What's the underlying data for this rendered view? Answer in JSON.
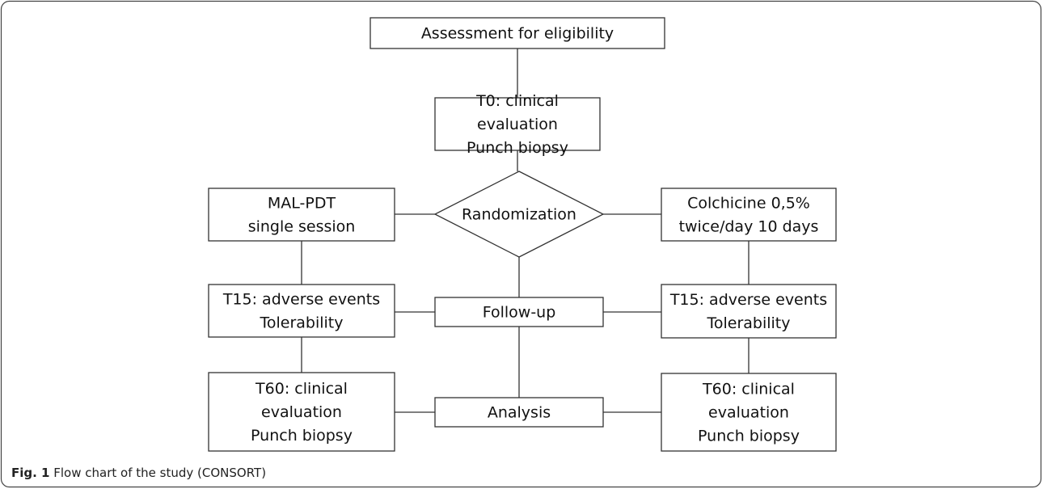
{
  "nodes": [
    {
      "lines": [
        "Assessment for eligibility"
      ]
    },
    {
      "lines": [
        "T0: clinical",
        "evaluation",
        "Punch biopsy"
      ]
    },
    {
      "lines": [
        "Randomization"
      ]
    },
    {
      "lines": [
        "MAL-PDT",
        "single session"
      ]
    },
    {
      "lines": [
        "Colchicine 0,5%",
        "twice/day  10 days"
      ]
    },
    {
      "lines": [
        "Follow-up"
      ]
    },
    {
      "lines": [
        "T15: adverse events",
        "Tolerability"
      ]
    },
    {
      "lines": [
        "T15: adverse events",
        "Tolerability"
      ]
    },
    {
      "lines": [
        "Analysis"
      ]
    },
    {
      "lines": [
        "T60: clinical",
        "evaluation",
        "Punch biopsy"
      ]
    },
    {
      "lines": [
        "T60: clinical",
        "evaluation",
        "Punch biopsy"
      ]
    }
  ],
  "caption": {
    "label": "Fig. 1",
    "text": "Flow chart of the study (CONSORT)"
  }
}
